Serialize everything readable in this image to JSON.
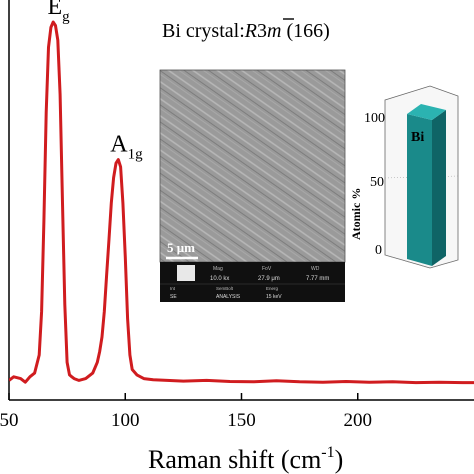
{
  "chart_data": {
    "type": "line",
    "title": "Bi crystal:",
    "title_group_italic": "R3m",
    "title_group_bar_char": "3",
    "title_group_number": "(166)",
    "xlabel": "Raman shift (cm",
    "xlabel_sup": "-1",
    "xlabel_close": ")",
    "ylabel": "",
    "xlim": [
      50,
      250
    ],
    "x_ticks": [
      50,
      100,
      150,
      200
    ],
    "x_tick_labels": [
      "50",
      "100",
      "150",
      "200"
    ],
    "ylim": [
      0,
      1
    ],
    "grid": false,
    "line_color": "#d01c1f",
    "series": [
      {
        "x": [
          50,
          52,
          55,
          57,
          59,
          61,
          63,
          64,
          65,
          66,
          67,
          68,
          69,
          70,
          71,
          72,
          73,
          74,
          75,
          76,
          77,
          78,
          80,
          83,
          86,
          88,
          89,
          90,
          91,
          92,
          93,
          94,
          95,
          96,
          97,
          98,
          99,
          100,
          101,
          102,
          103,
          105,
          108,
          112,
          118,
          125,
          135,
          145,
          155,
          165,
          175,
          185,
          195,
          205,
          215,
          225,
          235,
          245,
          250
        ],
        "y": [
          0.01,
          0.02,
          0.015,
          0.005,
          0.02,
          0.03,
          0.08,
          0.2,
          0.45,
          0.75,
          0.93,
          0.985,
          1.0,
          0.99,
          0.95,
          0.8,
          0.5,
          0.22,
          0.06,
          0.025,
          0.02,
          0.015,
          0.01,
          0.015,
          0.03,
          0.06,
          0.09,
          0.13,
          0.2,
          0.3,
          0.4,
          0.5,
          0.57,
          0.61,
          0.62,
          0.6,
          0.5,
          0.35,
          0.18,
          0.08,
          0.04,
          0.025,
          0.015,
          0.012,
          0.01,
          0.008,
          0.01,
          0.007,
          0.006,
          0.009,
          0.006,
          0.005,
          0.007,
          0.005,
          0.006,
          0.004,
          0.005,
          0.004,
          0.004
        ]
      }
    ],
    "annotations": [
      {
        "text": "E",
        "sub": "g",
        "x": 70,
        "y": 1.0
      },
      {
        "text": "A",
        "sub": "1g",
        "x": 97,
        "y": 0.62
      }
    ]
  },
  "inset_sem": {
    "scale_label": "5 μm",
    "info_headers": [
      "Mag",
      "FoV",
      "WD"
    ],
    "info_values": [
      "10.0 kx",
      "27.9 μm",
      "7.77 mm"
    ],
    "info_headers_2": [
      "Int",
      "SemBolt",
      "Energ"
    ],
    "info_values_2": [
      "SE",
      "ANALYSIS",
      "15 keV"
    ]
  },
  "inset_bar": {
    "type": "bar",
    "category": "Bi",
    "value": 100,
    "ylabel": "Atomic %",
    "ylim": [
      0,
      100
    ],
    "ticks": [
      "0",
      "50",
      "100"
    ],
    "bar_color": "#1a8a8a"
  }
}
